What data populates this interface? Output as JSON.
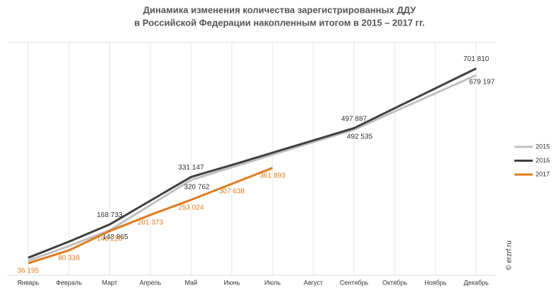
{
  "chart_data": {
    "type": "line",
    "title": [
      "Динамика изменения количества зарегистрированных ДДУ",
      "в Российской Федерации накопленным итогом в 2015 – 2017 гг."
    ],
    "categories": [
      "Январь",
      "Февраль",
      "Март",
      "Апрель",
      "Май",
      "Июнь",
      "Июль",
      "Август",
      "Сентябрь",
      "Октябрь",
      "Ноябрь",
      "Декабрь"
    ],
    "series": [
      {
        "name": "2015",
        "color": "#c0c0c0",
        "values": [
          45000,
          95000,
          148865,
          235000,
          320762,
          364000,
          407000,
          450000,
          492535,
          555000,
          617000,
          679197
        ],
        "value_labels": [
          null,
          null,
          "148 865",
          null,
          "320 762",
          null,
          null,
          null,
          "492 535",
          null,
          null,
          "679 197"
        ]
      },
      {
        "name": "2016",
        "color": "#404040",
        "values": [
          55000,
          110000,
          168733,
          250000,
          331147,
          372000,
          414000,
          456000,
          497887,
          566000,
          634000,
          701810
        ],
        "value_labels": [
          null,
          null,
          "168 733",
          null,
          "331 147",
          null,
          null,
          null,
          "497 887",
          null,
          null,
          "701 810"
        ]
      },
      {
        "name": "2017",
        "color": "#e07b1f",
        "values": [
          36195,
          80338,
          146220,
          201373,
          253024,
          307638,
          361893,
          null,
          null,
          null,
          null,
          null
        ],
        "value_labels": [
          "36 195",
          "80 338",
          "146 220",
          "201 373",
          "253 024",
          "307 638",
          "361 893",
          null,
          null,
          null,
          null,
          null
        ]
      }
    ],
    "ylim": [
      0,
      800000
    ],
    "legend": "right",
    "watermark": "© erzrf.ru"
  }
}
